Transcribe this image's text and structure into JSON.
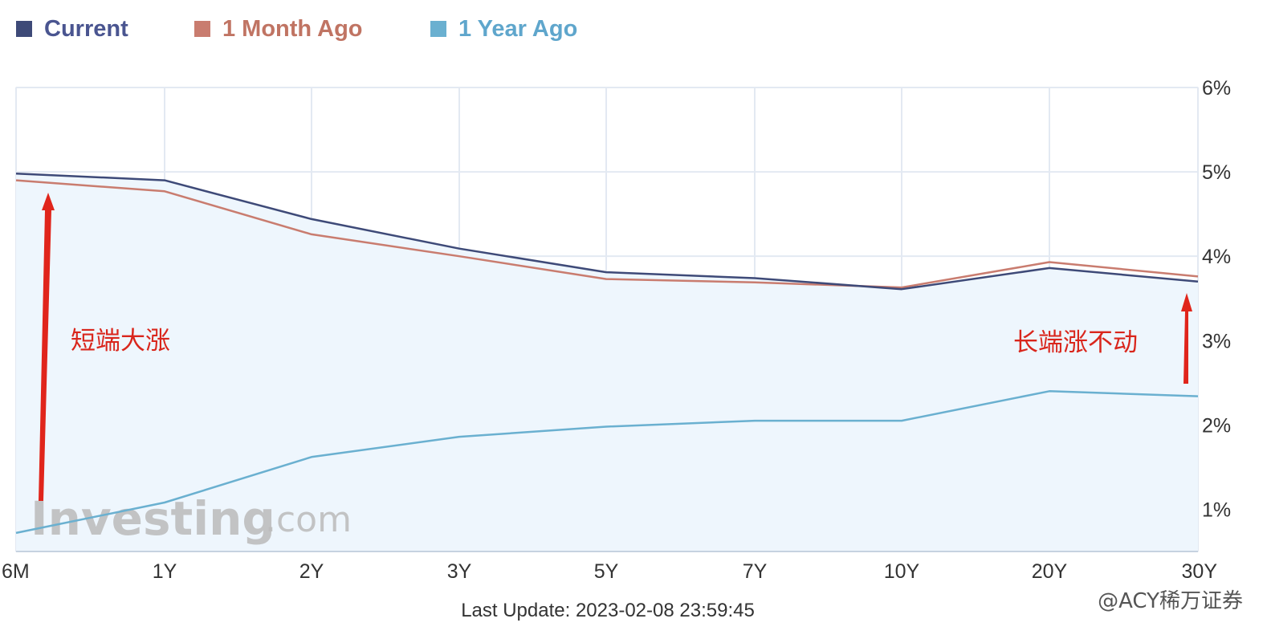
{
  "chart_data": {
    "type": "line",
    "categories": [
      "6M",
      "1Y",
      "2Y",
      "3Y",
      "5Y",
      "7Y",
      "10Y",
      "20Y",
      "30Y"
    ],
    "y_ticks": [
      "1%",
      "2%",
      "3%",
      "4%",
      "5%",
      "6%"
    ],
    "ylim": [
      0.5,
      6
    ],
    "y_axis_side": "right",
    "grid": true,
    "legend_position": "top-left",
    "series": [
      {
        "name": "1 Year Ago",
        "color": "#6ab0d0",
        "values": [
          0.72,
          1.08,
          1.62,
          1.86,
          1.98,
          2.05,
          2.05,
          2.4,
          2.34
        ]
      },
      {
        "name": "1 Month Ago",
        "color": "#c97c6f",
        "values": [
          4.9,
          4.77,
          4.26,
          4.0,
          3.73,
          3.69,
          3.63,
          3.93,
          3.76
        ]
      },
      {
        "name": "Current",
        "color": "#3e4a78",
        "values": [
          4.98,
          4.9,
          4.44,
          4.09,
          3.81,
          3.74,
          3.61,
          3.86,
          3.7
        ]
      }
    ],
    "annotations": [
      {
        "text": "短端大涨",
        "color": "#d9261c"
      },
      {
        "text": "长端涨不动",
        "color": "#d9261c"
      }
    ],
    "footer": "Last Update: 2023-02-08 23:59:45"
  },
  "branding": {
    "logo_word": "Investing",
    "logo_suffix": ".com",
    "watermark": "@ACY稀万证券"
  },
  "colors": {
    "grid": "#e3e9f2",
    "plot_fill": "#eef6fd",
    "axis": "#c6d2e0",
    "arrow": "#e0251b"
  }
}
